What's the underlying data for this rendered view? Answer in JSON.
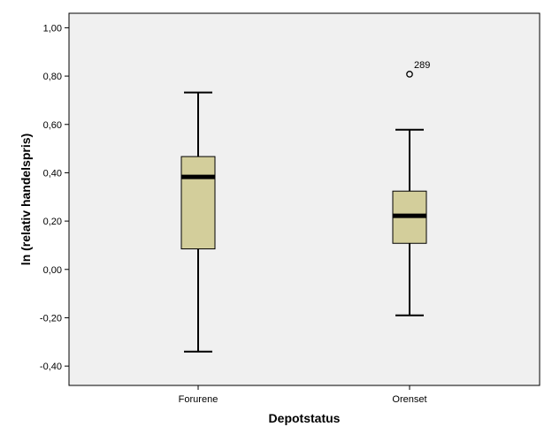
{
  "chart_data": {
    "type": "boxplot",
    "xlabel": "Depotstatus",
    "ylabel": "ln (relativ handelspris)",
    "ylim": [
      -0.48,
      1.06
    ],
    "yticks": [
      {
        "value": 1.0,
        "label": "1,00"
      },
      {
        "value": 0.8,
        "label": "0,80"
      },
      {
        "value": 0.6,
        "label": "0,60"
      },
      {
        "value": 0.4,
        "label": "0,40"
      },
      {
        "value": 0.2,
        "label": "0,20"
      },
      {
        "value": 0.0,
        "label": "0,00"
      },
      {
        "value": -0.2,
        "label": "-0,20"
      },
      {
        "value": -0.4,
        "label": "-0,40"
      }
    ],
    "grid": false,
    "plot_background": "#f0f0f0",
    "box_color": "#d3ce9b",
    "categories": [
      "Forurene",
      "Orenset"
    ],
    "boxes": [
      {
        "category": "Forurene",
        "whisker_low": -0.34,
        "q1": 0.085,
        "median": 0.383,
        "q3": 0.467,
        "whisker_high": 0.732,
        "outliers": []
      },
      {
        "category": "Orenset",
        "whisker_low": -0.19,
        "q1": 0.108,
        "median": 0.222,
        "q3": 0.324,
        "whisker_high": 0.578,
        "outliers": [
          {
            "value": 0.808,
            "label": "289"
          }
        ]
      }
    ]
  }
}
